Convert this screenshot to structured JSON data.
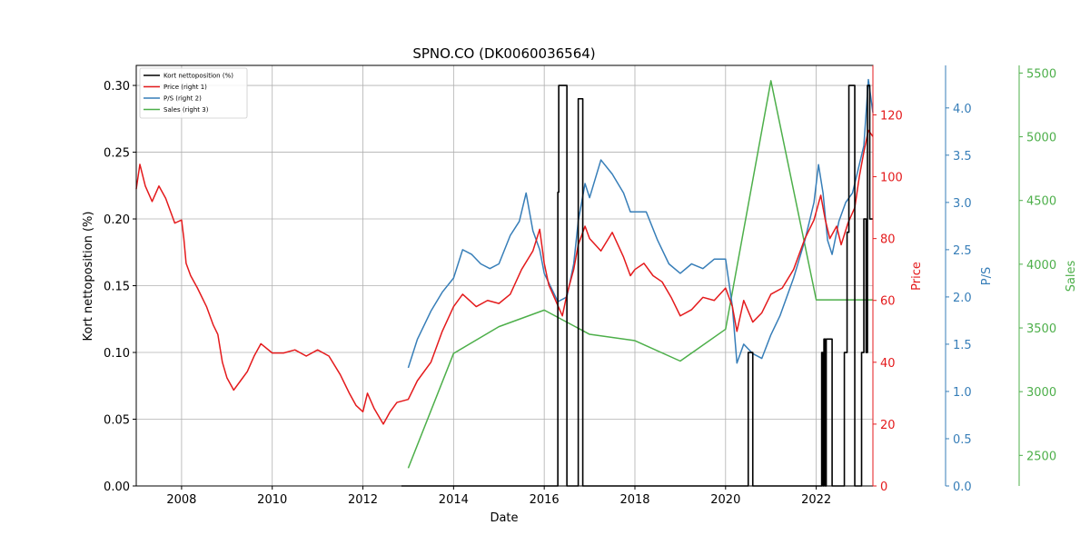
{
  "chart_data": {
    "type": "line",
    "title": "SPNO.CO (DK0060036564)",
    "xlabel": "Date",
    "x_ticks": [
      "2008",
      "2010",
      "2012",
      "2014",
      "2016",
      "2018",
      "2020",
      "2022"
    ],
    "x_range": [
      2007.0,
      2023.25
    ],
    "grid": true,
    "legend_placement": "top-left",
    "axes": {
      "left": {
        "label": "Kort nettoposition (%)",
        "ylim": [
          0.0,
          0.315
        ],
        "ticks": [
          "0.00",
          "0.05",
          "0.10",
          "0.15",
          "0.20",
          "0.25",
          "0.30"
        ],
        "color": "#000000"
      },
      "right1": {
        "label": "Price",
        "ylim": [
          0,
          136
        ],
        "ticks": [
          "0",
          "20",
          "40",
          "60",
          "80",
          "100",
          "120"
        ],
        "color": "#e41a1c"
      },
      "right2": {
        "label": "P/S",
        "ylim": [
          0.0,
          4.45
        ],
        "ticks": [
          "0.0",
          "0.5",
          "1.0",
          "1.5",
          "2.0",
          "2.5",
          "3.0",
          "3.5",
          "4.0"
        ],
        "color": "#377eb8"
      },
      "right3": {
        "label": "Sales",
        "ylim": [
          2260,
          5560
        ],
        "ticks": [
          "2500",
          "3000",
          "3500",
          "4000",
          "4500",
          "5000",
          "5500"
        ],
        "color": "#4daf4a"
      }
    },
    "series": [
      {
        "name": "Kort nettoposition (%)",
        "axis": "left",
        "color": "#000000",
        "step": true,
        "x": [
          2012.85,
          2016.3,
          2016.32,
          2016.35,
          2016.5,
          2016.75,
          2016.77,
          2016.85,
          2020.5,
          2020.6,
          2022.12,
          2022.15,
          2022.17,
          2022.2,
          2022.22,
          2022.35,
          2022.62,
          2022.68,
          2022.72,
          2022.85,
          2022.88,
          2023.0,
          2023.05,
          2023.1,
          2023.13,
          2023.18,
          2023.25
        ],
        "values": [
          0.0,
          0.22,
          0.3,
          0.3,
          0.0,
          0.29,
          0.29,
          0.0,
          0.1,
          0.0,
          0.1,
          0.0,
          0.11,
          0.0,
          0.11,
          0.0,
          0.1,
          0.19,
          0.3,
          0.0,
          0.0,
          0.1,
          0.2,
          0.1,
          0.3,
          0.2,
          0.2
        ]
      },
      {
        "name": "Price (right 1)",
        "axis": "right1",
        "color": "#e41a1c",
        "x": [
          2007.0,
          2007.08,
          2007.2,
          2007.35,
          2007.5,
          2007.65,
          2007.75,
          2007.85,
          2008.0,
          2008.05,
          2008.1,
          2008.2,
          2008.35,
          2008.55,
          2008.7,
          2008.8,
          2008.9,
          2009.0,
          2009.15,
          2009.3,
          2009.45,
          2009.6,
          2009.75,
          2010.0,
          2010.25,
          2010.5,
          2010.75,
          2011.0,
          2011.25,
          2011.5,
          2011.7,
          2011.85,
          2012.0,
          2012.1,
          2012.25,
          2012.45,
          2012.6,
          2012.75,
          2013.0,
          2013.2,
          2013.5,
          2013.75,
          2014.0,
          2014.2,
          2014.35,
          2014.5,
          2014.75,
          2015.0,
          2015.25,
          2015.5,
          2015.75,
          2015.9,
          2016.0,
          2016.1,
          2016.25,
          2016.4,
          2016.5,
          2016.65,
          2016.75,
          2016.9,
          2017.0,
          2017.25,
          2017.5,
          2017.75,
          2017.9,
          2018.0,
          2018.2,
          2018.4,
          2018.6,
          2018.8,
          2019.0,
          2019.25,
          2019.5,
          2019.75,
          2020.0,
          2020.15,
          2020.25,
          2020.4,
          2020.6,
          2020.8,
          2021.0,
          2021.25,
          2021.5,
          2021.75,
          2021.95,
          2022.1,
          2022.2,
          2022.3,
          2022.45,
          2022.55,
          2022.7,
          2022.85,
          2022.95,
          2023.05,
          2023.15,
          2023.25
        ],
        "values": [
          96,
          104,
          97,
          92,
          97,
          93,
          89,
          85,
          86,
          80,
          72,
          68,
          64,
          58,
          52,
          49,
          40,
          35,
          31,
          34,
          37,
          42,
          46,
          43,
          43,
          44,
          42,
          44,
          42,
          36,
          30,
          26,
          24,
          30,
          25,
          20,
          24,
          27,
          28,
          34,
          40,
          50,
          58,
          62,
          60,
          58,
          60,
          59,
          62,
          70,
          76,
          83,
          72,
          65,
          60,
          55,
          62,
          70,
          78,
          84,
          80,
          76,
          82,
          74,
          68,
          70,
          72,
          68,
          66,
          61,
          55,
          57,
          61,
          60,
          64,
          58,
          50,
          60,
          53,
          56,
          62,
          64,
          70,
          80,
          86,
          94,
          86,
          80,
          84,
          78,
          85,
          90,
          100,
          108,
          115,
          113
        ]
      },
      {
        "name": "P/S (right 2)",
        "axis": "right2",
        "color": "#377eb8",
        "x": [
          2013.0,
          2013.2,
          2013.5,
          2013.75,
          2014.0,
          2014.2,
          2014.4,
          2014.6,
          2014.8,
          2015.0,
          2015.25,
          2015.45,
          2015.6,
          2015.75,
          2015.9,
          2016.0,
          2016.15,
          2016.3,
          2016.5,
          2016.65,
          2016.75,
          2016.9,
          2017.0,
          2017.25,
          2017.5,
          2017.75,
          2017.9,
          2018.0,
          2018.25,
          2018.5,
          2018.75,
          2019.0,
          2019.25,
          2019.5,
          2019.75,
          2020.0,
          2020.15,
          2020.25,
          2020.4,
          2020.6,
          2020.8,
          2021.0,
          2021.2,
          2021.5,
          2021.75,
          2021.95,
          2022.05,
          2022.15,
          2022.25,
          2022.35,
          2022.5,
          2022.65,
          2022.8,
          2022.95,
          2023.05,
          2023.15,
          2023.25
        ],
        "values": [
          1.25,
          1.55,
          1.85,
          2.05,
          2.2,
          2.5,
          2.45,
          2.35,
          2.3,
          2.35,
          2.65,
          2.8,
          3.1,
          2.7,
          2.5,
          2.25,
          2.1,
          1.95,
          2.0,
          2.35,
          2.8,
          3.2,
          3.05,
          3.45,
          3.3,
          3.1,
          2.9,
          2.9,
          2.9,
          2.6,
          2.35,
          2.25,
          2.35,
          2.3,
          2.4,
          2.4,
          1.9,
          1.3,
          1.5,
          1.4,
          1.35,
          1.6,
          1.8,
          2.2,
          2.6,
          3.0,
          3.4,
          3.1,
          2.6,
          2.45,
          2.8,
          3.0,
          3.1,
          3.4,
          3.6,
          4.3,
          3.95
        ]
      },
      {
        "name": "Sales (right 3)",
        "axis": "right3",
        "color": "#4daf4a",
        "x": [
          2013.0,
          2014.0,
          2015.0,
          2016.0,
          2017.0,
          2018.0,
          2019.0,
          2020.0,
          2021.0,
          2022.0,
          2023.25
        ],
        "values": [
          2400,
          3300,
          3510,
          3640,
          3450,
          3400,
          3240,
          3490,
          5440,
          3720,
          3720
        ]
      }
    ]
  }
}
